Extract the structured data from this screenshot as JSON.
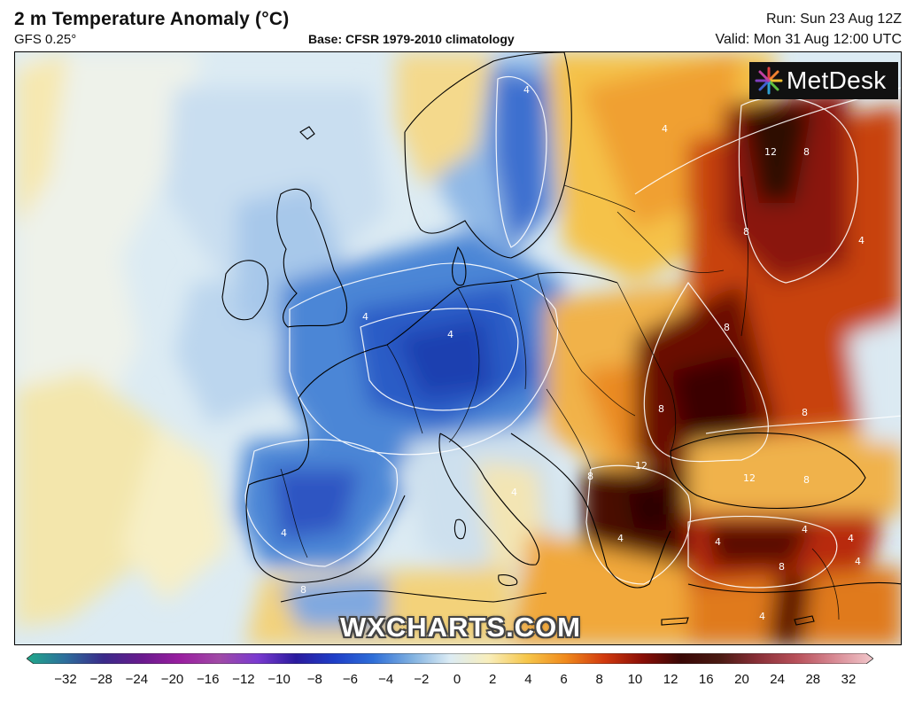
{
  "header": {
    "title": "2 m Temperature Anomaly (°C)",
    "model": "GFS 0.25°",
    "base": "Base: CFSR 1979-2010 climatology",
    "run": "Run: Sun 23 Aug 12Z",
    "valid": "Valid: Mon 31 Aug 12:00 UTC"
  },
  "logo": {
    "text": "MetDesk",
    "icon": "metdesk-starburst-icon"
  },
  "watermark": "WXCHARTS.COM",
  "legend": {
    "ticks": [
      "−32",
      "−28",
      "−24",
      "−20",
      "−16",
      "−12",
      "−10",
      "−8",
      "−6",
      "−4",
      "−2",
      "0",
      "2",
      "4",
      "6",
      "8",
      "10",
      "12",
      "16",
      "20",
      "24",
      "28",
      "32"
    ],
    "colors": [
      "#1fa98a",
      "#2d6e9c",
      "#3a2a8a",
      "#6a1a8e",
      "#9a1ea0",
      "#a04aa6",
      "#7a3ad0",
      "#2a1a9e",
      "#1e3ec8",
      "#2e6ed8",
      "#7fb0e0",
      "#dcecf4",
      "#f8eebc",
      "#f6c64a",
      "#f08a1c",
      "#d23a0e",
      "#8a0e06",
      "#3a0806",
      "#4a1a12",
      "#8a3038",
      "#b8505a",
      "#d88a94",
      "#f2c8cc"
    ]
  },
  "map": {
    "contour_labels": [
      {
        "text": "4"
      },
      {
        "text": "4"
      },
      {
        "text": "12"
      },
      {
        "text": "8"
      },
      {
        "text": "8"
      },
      {
        "text": "4"
      },
      {
        "text": "4"
      },
      {
        "text": "4"
      },
      {
        "text": "8"
      },
      {
        "text": "8"
      },
      {
        "text": "8"
      },
      {
        "text": "12"
      },
      {
        "text": "8"
      },
      {
        "text": "12"
      },
      {
        "text": "8"
      },
      {
        "text": "4"
      },
      {
        "text": "4"
      },
      {
        "text": "4"
      },
      {
        "text": "4"
      },
      {
        "text": "4"
      },
      {
        "text": "8"
      },
      {
        "text": "4"
      },
      {
        "text": "4"
      },
      {
        "text": "8"
      },
      {
        "text": "4"
      }
    ]
  }
}
